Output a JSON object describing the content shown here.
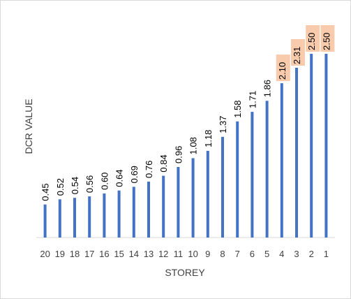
{
  "chart_data": {
    "type": "bar",
    "title": "",
    "xlabel": "STOREY",
    "ylabel": "DCR VALUE",
    "categories": [
      "20",
      "19",
      "18",
      "17",
      "16",
      "15",
      "14",
      "13",
      "12",
      "11",
      "10",
      "9",
      "8",
      "7",
      "6",
      "5",
      "4",
      "3",
      "2",
      "1"
    ],
    "values": [
      0.45,
      0.52,
      0.54,
      0.56,
      0.6,
      0.64,
      0.69,
      0.76,
      0.84,
      0.96,
      1.08,
      1.18,
      1.37,
      1.58,
      1.71,
      1.86,
      2.1,
      2.31,
      2.5,
      2.5
    ],
    "data_labels": [
      "0.45",
      "0.52",
      "0.54",
      "0.56",
      "0.60",
      "0.64",
      "0.69",
      "0.76",
      "0.84",
      "0.96",
      "1.08",
      "1.18",
      "1.37",
      "1.58",
      "1.71",
      "1.86",
      "2.10",
      "2.31",
      "2.50",
      "2.50"
    ],
    "highlighted": [
      false,
      false,
      false,
      false,
      false,
      false,
      false,
      false,
      false,
      false,
      false,
      false,
      false,
      false,
      false,
      false,
      true,
      true,
      true,
      true
    ],
    "ylim": [
      0,
      2.5
    ],
    "grid": false,
    "legend": "none",
    "colors": {
      "bar": "#4472c4",
      "highlight": "#f8cbad",
      "axis": "#d9d9d9",
      "text": "#404040",
      "label": "#000000"
    }
  }
}
